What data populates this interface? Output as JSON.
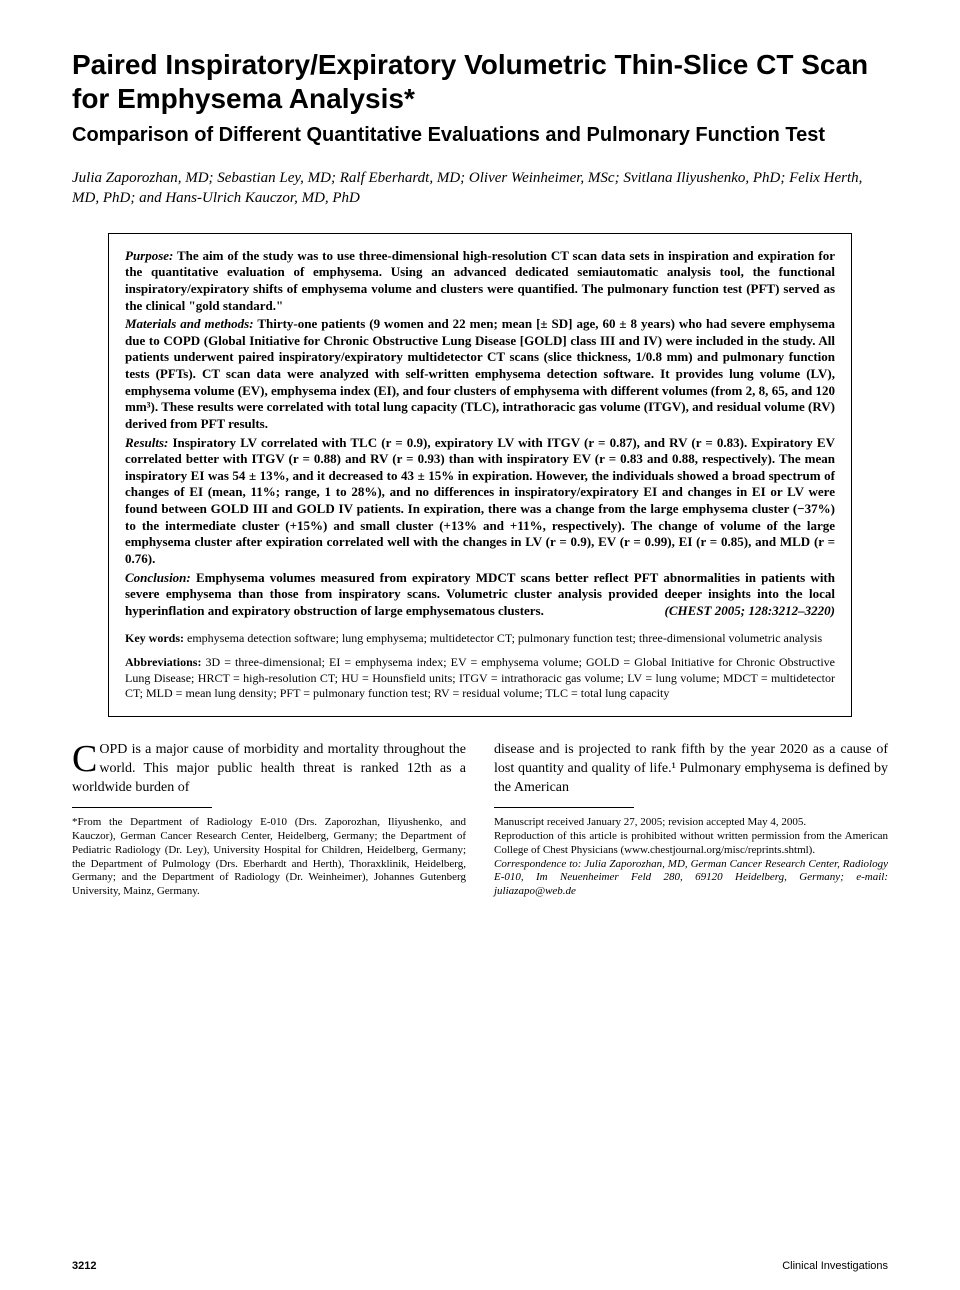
{
  "title": "Paired Inspiratory/Expiratory Volumetric Thin-Slice CT Scan for Emphysema Analysis*",
  "subtitle": "Comparison of Different Quantitative Evaluations and Pulmonary Function Test",
  "authors": "Julia Zaporozhan, MD; Sebastian Ley, MD; Ralf Eberhardt, MD; Oliver Weinheimer, MSc; Svitlana Iliyushenko, PhD; Felix Herth, MD, PhD; and Hans-Ulrich Kauczor, MD, PhD",
  "abstract": {
    "purpose_label": "Purpose:",
    "purpose": " The aim of the study was to use three-dimensional high-resolution CT scan data sets in inspiration and expiration for the quantitative evaluation of emphysema. Using an advanced dedicated semiautomatic analysis tool, the functional inspiratory/expiratory shifts of emphysema volume and clusters were quantified. The pulmonary function test (PFT) served as the clinical \"gold standard.\"",
    "mm_label": "Materials and methods:",
    "mm": " Thirty-one patients (9 women and 22 men; mean [± SD] age, 60 ± 8 years) who had severe emphysema due to COPD (Global Initiative for Chronic Obstructive Lung Disease [GOLD] class III and IV) were included in the study. All patients underwent paired inspiratory/expiratory multidetector CT scans (slice thickness, 1/0.8 mm) and pulmonary function tests (PFTs). CT scan data were analyzed with self-written emphysema detection software. It provides lung volume (LV), emphysema volume (EV), emphysema index (EI), and four clusters of emphysema with different volumes (from 2, 8, 65, and 120 mm³). These results were correlated with total lung capacity (TLC), intrathoracic gas volume (ITGV), and residual volume (RV) derived from PFT results.",
    "results_label": "Results:",
    "results": " Inspiratory LV correlated with TLC (r = 0.9), expiratory LV with ITGV (r = 0.87), and RV (r = 0.83). Expiratory EV correlated better with ITGV (r = 0.88) and RV (r = 0.93) than with inspiratory EV (r = 0.83 and 0.88, respectively). The mean inspiratory EI was 54 ± 13%, and it decreased to 43 ± 15% in expiration. However, the individuals showed a broad spectrum of changes of EI (mean, 11%; range, 1 to 28%), and no differences in inspiratory/expiratory EI and changes in EI or LV were found between GOLD III and GOLD IV patients. In expiration, there was a change from the large emphysema cluster (−37%) to the intermediate cluster (+15%) and small cluster (+13% and +11%, respectively). The change of volume of the large emphysema cluster after expiration correlated well with the changes in LV (r = 0.9), EV (r = 0.99), EI (r = 0.85), and MLD (r = 0.76).",
    "conclusion_label": "Conclusion:",
    "conclusion": " Emphysema volumes measured from expiratory MDCT scans better reflect PFT abnormalities in patients with severe emphysema than those from inspiratory scans. Volumetric cluster analysis provided deeper insights into the local hyperinflation and expiratory obstruction of large emphysematous clusters.",
    "citation": "(CHEST 2005; 128:3212–3220)",
    "keywords_label": "Key words:",
    "keywords": " emphysema detection software; lung emphysema; multidetector CT; pulmonary function test; three-dimensional volumetric analysis",
    "abbrev_label": "Abbreviations:",
    "abbrev": " 3D = three-dimensional; EI = emphysema index; EV = emphysema volume; GOLD = Global Initiative for Chronic Obstructive Lung Disease; HRCT = high-resolution CT; HU = Hounsfield units; ITGV = intrathoracic gas volume; LV = lung volume; MDCT = multidetector CT; MLD = mean lung density; PFT = pulmonary function test; RV = residual volume; TLC = total lung capacity"
  },
  "body": {
    "dropcap": "C",
    "col1": "OPD is a major cause of morbidity and mortality throughout the world. This major public health threat is ranked 12th as a worldwide burden of",
    "col2": "disease and is projected to rank fifth by the year 2020 as a cause of lost quantity and quality of life.¹ Pulmonary emphysema is defined by the American"
  },
  "footnotes": {
    "left": "*From the Department of Radiology E-010 (Drs. Zaporozhan, Iliyushenko, and Kauczor), German Cancer Research Center, Heidelberg, Germany; the Department of Pediatric Radiology (Dr. Ley), University Hospital for Children, Heidelberg, Germany; the Department of Pulmology (Drs. Eberhardt and Herth), Thoraxklinik, Heidelberg, Germany; and the Department of Radiology (Dr. Weinheimer), Johannes Gutenberg University, Mainz, Germany.",
    "right1": "Manuscript received January 27, 2005; revision accepted May 4, 2005.",
    "right2": "Reproduction of this article is prohibited without written permission from the American College of Chest Physicians (www.chestjournal.org/misc/reprints.shtml).",
    "right3_label": "Correspondence to:",
    "right3": " Julia Zaporozhan, MD, German Cancer Research Center, Radiology E-010, Im Neuenheimer Feld 280, 69120 Heidelberg, Germany; e-mail: juliazapo@web.de"
  },
  "footer": {
    "page": "3212",
    "section": "Clinical Investigations"
  }
}
